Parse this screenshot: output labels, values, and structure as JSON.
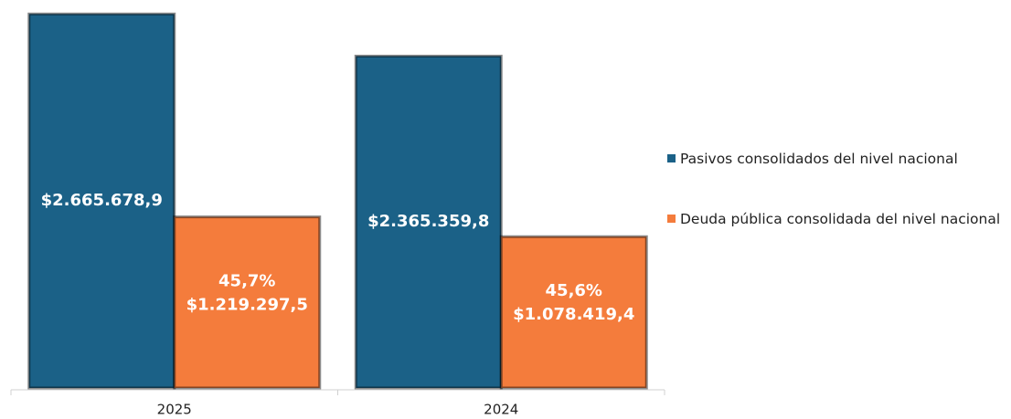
{
  "chart_data": {
    "type": "bar",
    "categories": [
      "2025",
      "2024"
    ],
    "series": [
      {
        "name": "Pasivos consolidados del nivel nacional",
        "color": "#1b6187",
        "values": [
          2665678.9,
          2365359.8
        ],
        "value_labels": [
          "$2.665.678,9",
          "$2.365.359,8"
        ]
      },
      {
        "name": "Deuda pública consolidada del nivel nacional",
        "color": "#f47c3c",
        "values": [
          1219297.5,
          1078419.4
        ],
        "value_labels": [
          "$1.219.297,5",
          "$1.078.419,4"
        ],
        "percent_labels": [
          "45,7%",
          "45,6%"
        ]
      }
    ],
    "ylim": [
      0,
      2700000
    ],
    "legend": "right"
  }
}
